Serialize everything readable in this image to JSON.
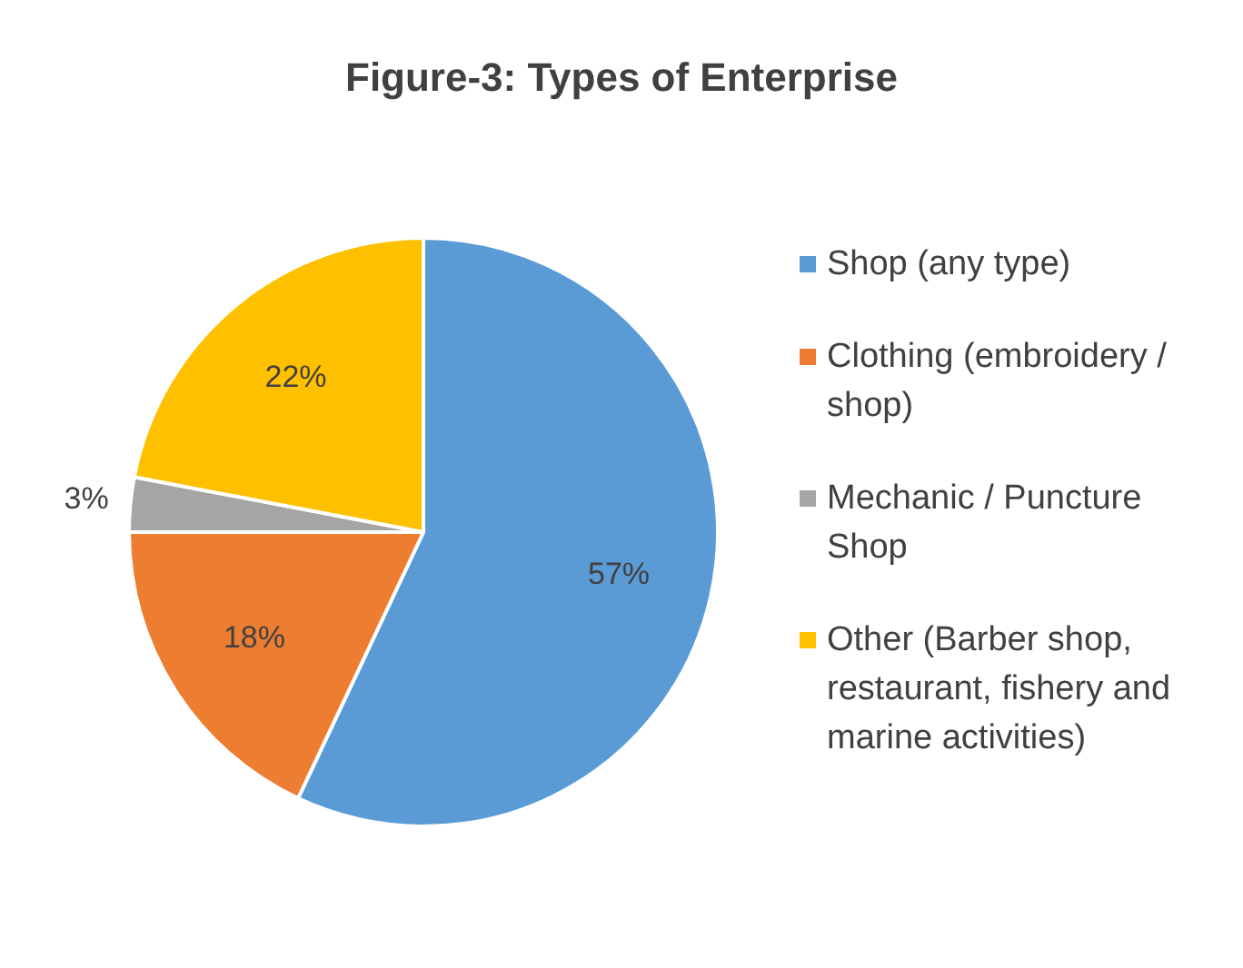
{
  "chart_data": {
    "type": "pie",
    "title": "Figure-3: Types of Enterprise",
    "categories": [
      "Shop (any type)",
      "Clothing (embroidery / shop)",
      "Mechanic / Puncture Shop",
      "Other (Barber shop, restaurant, fishery and marine activities)"
    ],
    "values": [
      57,
      18,
      3,
      22
    ],
    "colors": [
      "#5b9bd5",
      "#ed7d31",
      "#a5a5a5",
      "#ffc000"
    ],
    "value_labels": [
      "57%",
      "18%",
      "3%",
      "22%"
    ],
    "legend": "right"
  }
}
